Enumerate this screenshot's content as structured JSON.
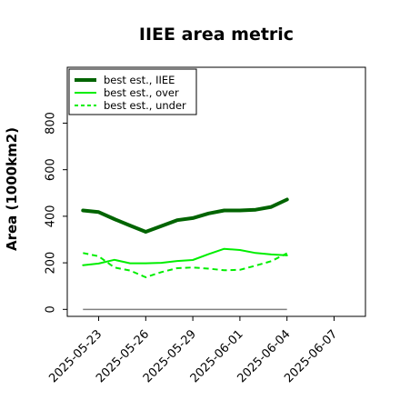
{
  "chart_data": {
    "type": "line",
    "title": "IIEE area metric",
    "xlabel": "",
    "ylabel": "Area (1000km2)",
    "x_ticks": [
      "2025-05-23",
      "2025-05-26",
      "2025-05-29",
      "2025-06-01",
      "2025-06-04",
      "2025-06-07"
    ],
    "y_ticks": [
      "0",
      "200",
      "400",
      "600",
      "800"
    ],
    "ylim": [
      -30,
      1040
    ],
    "xlim": [
      "2025-05-21",
      "2025-06-09"
    ],
    "grid": false,
    "legend_position": "top-left",
    "x": [
      "2025-05-22",
      "2025-05-23",
      "2025-05-24",
      "2025-05-25",
      "2025-05-26",
      "2025-05-27",
      "2025-05-28",
      "2025-05-29",
      "2025-05-30",
      "2025-05-31",
      "2025-06-01",
      "2025-06-02",
      "2025-06-03",
      "2025-06-04"
    ],
    "series": [
      {
        "name": "best est., IIEE",
        "color": "#006400",
        "style": "solid",
        "width": 4,
        "values": [
          425,
          418,
          388,
          360,
          333,
          358,
          383,
          392,
          412,
          425,
          425,
          428,
          440,
          472
        ]
      },
      {
        "name": "best est., over",
        "color": "#00ee00",
        "style": "solid",
        "width": 2,
        "values": [
          190,
          197,
          213,
          198,
          198,
          200,
          208,
          212,
          237,
          260,
          255,
          242,
          236,
          232
        ]
      },
      {
        "name": "best est., under",
        "color": "#00ee00",
        "style": "dashed",
        "width": 2,
        "values": [
          242,
          228,
          180,
          167,
          138,
          160,
          177,
          180,
          175,
          168,
          170,
          188,
          207,
          241
        ]
      }
    ],
    "reference_line": {
      "value": 0,
      "color": "#808080"
    }
  }
}
